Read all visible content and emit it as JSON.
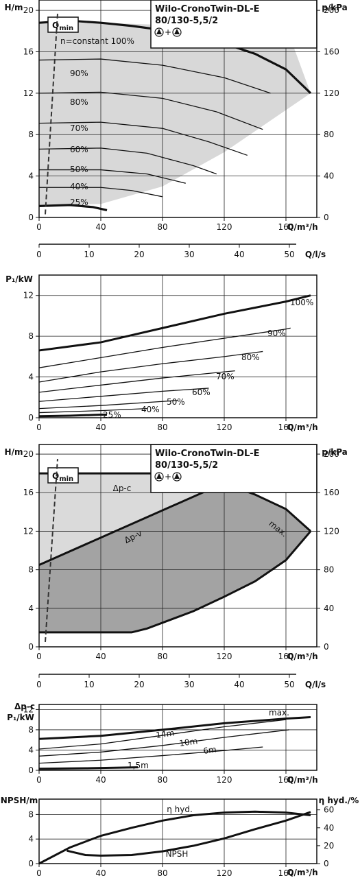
{
  "chart_data": [
    {
      "type": "line",
      "panel": "head-curves-speed",
      "title": "Wilo-CronoTwin-DL-E",
      "subtitle": "80/130-5,5/2",
      "pump_symbol": "▲+▲",
      "ylabel_left": "H/m",
      "ylabel_right": "p/kPa",
      "xlabel": "Q/m³/h",
      "xlim": [
        0,
        180
      ],
      "ylim": [
        0,
        21
      ],
      "x_ticks": [
        0,
        40,
        80,
        120,
        160
      ],
      "y_ticks": [
        0,
        4,
        8,
        12,
        16,
        20
      ],
      "y_right_ticks": [
        0,
        40,
        80,
        120,
        160,
        200
      ],
      "grid": true,
      "qmin_label": "Qmin",
      "qmin_line": {
        "x": [
          4,
          12
        ],
        "y": [
          0.3,
          19.7
        ]
      },
      "envelope": {
        "x": [
          0,
          40,
          80,
          120,
          160,
          176,
          120,
          80,
          40,
          0
        ],
        "y": [
          18.8,
          18.8,
          18.6,
          18.5,
          18.5,
          12,
          6.3,
          3,
          1.3,
          1.2
        ]
      },
      "series": [
        {
          "name": "n=constant 100%",
          "x": [
            0,
            20,
            40,
            60,
            80,
            100,
            120,
            140,
            160,
            176
          ],
          "y": [
            18.8,
            19.0,
            18.8,
            18.5,
            18.1,
            17.5,
            16.8,
            15.8,
            14.3,
            12.0
          ]
        },
        {
          "name": "90%",
          "x": [
            0,
            40,
            80,
            120,
            150
          ],
          "y": [
            15.2,
            15.3,
            14.7,
            13.5,
            12.0
          ]
        },
        {
          "name": "80%",
          "x": [
            0,
            40,
            80,
            115,
            145
          ],
          "y": [
            12.0,
            12.1,
            11.5,
            10.2,
            8.5
          ]
        },
        {
          "name": "70%",
          "x": [
            0,
            40,
            80,
            110,
            135
          ],
          "y": [
            9.1,
            9.2,
            8.6,
            7.3,
            6.0
          ]
        },
        {
          "name": "60%",
          "x": [
            0,
            40,
            70,
            100,
            115
          ],
          "y": [
            6.6,
            6.7,
            6.2,
            5.0,
            4.2
          ]
        },
        {
          "name": "50%",
          "x": [
            0,
            40,
            70,
            95
          ],
          "y": [
            4.6,
            4.6,
            4.2,
            3.3
          ]
        },
        {
          "name": "40%",
          "x": [
            0,
            40,
            60,
            80
          ],
          "y": [
            2.9,
            2.9,
            2.6,
            2.0
          ]
        },
        {
          "name": "25%",
          "x": [
            0,
            20,
            35,
            44
          ],
          "y": [
            1.1,
            1.2,
            1.0,
            0.7
          ]
        }
      ]
    },
    {
      "type": "axis",
      "panel": "flow-ls-axis",
      "xlabel": "Q/l/s",
      "xlim": [
        0,
        50
      ],
      "x_ticks": [
        0,
        10,
        20,
        30,
        40,
        50
      ]
    },
    {
      "type": "line",
      "panel": "power-curves-speed",
      "ylabel": "P₁/kW",
      "xlabel": "Q/m³/h",
      "xlim": [
        0,
        180
      ],
      "ylim": [
        0,
        14
      ],
      "x_ticks": [
        0,
        40,
        80,
        120,
        160
      ],
      "y_ticks": [
        0,
        4,
        8,
        12
      ],
      "grid": true,
      "series": [
        {
          "name": "100%",
          "x": [
            0,
            40,
            80,
            120,
            160,
            176
          ],
          "y": [
            6.6,
            7.4,
            8.8,
            10.2,
            11.4,
            12.0
          ]
        },
        {
          "name": "90%",
          "x": [
            0,
            40,
            80,
            120,
            160,
            163
          ],
          "y": [
            4.9,
            5.9,
            6.9,
            7.8,
            8.7,
            8.8
          ]
        },
        {
          "name": "80%",
          "x": [
            0,
            40,
            80,
            120,
            145
          ],
          "y": [
            3.5,
            4.5,
            5.3,
            6.0,
            6.5
          ]
        },
        {
          "name": "70%",
          "x": [
            0,
            40,
            80,
            120,
            127
          ],
          "y": [
            2.5,
            3.2,
            3.9,
            4.5,
            4.6
          ]
        },
        {
          "name": "60%",
          "x": [
            0,
            40,
            80,
            110
          ],
          "y": [
            1.6,
            2.1,
            2.6,
            2.9
          ]
        },
        {
          "name": "50%",
          "x": [
            0,
            40,
            80,
            90
          ],
          "y": [
            0.9,
            1.2,
            1.6,
            1.7
          ]
        },
        {
          "name": "40%",
          "x": [
            0,
            40,
            70
          ],
          "y": [
            0.5,
            0.7,
            0.9
          ]
        },
        {
          "name": "25%",
          "x": [
            0,
            20,
            40,
            44
          ],
          "y": [
            0.15,
            0.2,
            0.3,
            0.3
          ]
        }
      ]
    },
    {
      "type": "line",
      "panel": "head-curves-control",
      "title": "Wilo-CronoTwin-DL-E",
      "subtitle": "80/130-5,5/2",
      "pump_symbol": "▲+▲",
      "ylabel_left": "H/m",
      "ylabel_right": "p/kPa",
      "xlabel": "Q/m³/h",
      "xlim": [
        0,
        180
      ],
      "ylim": [
        0,
        21
      ],
      "x_ticks": [
        0,
        40,
        80,
        120,
        160
      ],
      "y_ticks": [
        0,
        4,
        8,
        12,
        16,
        20
      ],
      "y_right_ticks": [
        0,
        40,
        80,
        120,
        160,
        200
      ],
      "grid": true,
      "qmin_label": "Qmin",
      "qmin_line": {
        "x": [
          4,
          12
        ],
        "y": [
          0.5,
          19.5
        ]
      },
      "dpc_region": {
        "x": [
          0,
          95,
          120,
          0
        ],
        "y": [
          18,
          18,
          17,
          8.5
        ]
      },
      "control_region": {
        "x": [
          0,
          120,
          140,
          160,
          176,
          160,
          140,
          120,
          100,
          70,
          60,
          0
        ],
        "y": [
          8.5,
          17,
          15.8,
          14.3,
          12,
          9,
          6.8,
          5.2,
          3.7,
          1.9,
          1.5,
          1.5
        ]
      },
      "series": [
        {
          "name": "Δp-c",
          "x": [
            0,
            95,
            120
          ],
          "y": [
            18,
            18,
            17
          ]
        },
        {
          "name": "Δp-v",
          "x": [
            0,
            120
          ],
          "y": [
            8.5,
            17
          ]
        },
        {
          "name": "max.",
          "x": [
            120,
            140,
            160,
            176
          ],
          "y": [
            17,
            15.8,
            14.3,
            12
          ]
        },
        {
          "name": "min",
          "x": [
            0,
            60,
            70,
            100,
            120,
            140,
            160,
            176
          ],
          "y": [
            1.5,
            1.5,
            1.9,
            3.7,
            5.2,
            6.8,
            9.0,
            12
          ]
        }
      ]
    },
    {
      "type": "axis",
      "panel": "flow-ls-axis-2",
      "xlabel": "Q/l/s",
      "xlim": [
        0,
        50
      ],
      "x_ticks": [
        0,
        10,
        20,
        30,
        40,
        50
      ]
    },
    {
      "type": "line",
      "panel": "power-curves-dpc",
      "ylabel_top": "Δp-c",
      "ylabel": "P₁/kW",
      "xlabel": "Q/m³/h",
      "xlim": [
        0,
        180
      ],
      "ylim": [
        0,
        13
      ],
      "x_ticks": [
        0,
        40,
        80,
        120,
        160
      ],
      "y_ticks": [
        0,
        4,
        8,
        12
      ],
      "grid": true,
      "series": [
        {
          "name": "max.",
          "x": [
            0,
            40,
            80,
            120,
            160,
            176
          ],
          "y": [
            6.2,
            6.8,
            8.0,
            9.3,
            10.2,
            10.5
          ]
        },
        {
          "name": "14m",
          "x": [
            0,
            40,
            80,
            120,
            160
          ],
          "y": [
            4.2,
            5.2,
            6.9,
            8.6,
            10.0
          ]
        },
        {
          "name": "10m",
          "x": [
            0,
            40,
            80,
            120,
            162
          ],
          "y": [
            2.8,
            3.6,
            4.9,
            6.5,
            8.0
          ]
        },
        {
          "name": "6m",
          "x": [
            0,
            40,
            80,
            120,
            145
          ],
          "y": [
            1.4,
            2.0,
            2.9,
            3.9,
            4.6
          ]
        },
        {
          "name": "1,5m",
          "x": [
            0,
            30,
            64
          ],
          "y": [
            0.3,
            0.4,
            0.6
          ]
        }
      ]
    },
    {
      "type": "line",
      "panel": "npsh-efficiency",
      "ylabel_left": "NPSH/m",
      "ylabel_right": "η hyd./%",
      "xlabel": "Q/m³/h",
      "xlim": [
        0,
        180
      ],
      "ylim": [
        0,
        10.5
      ],
      "x_ticks": [
        0,
        40,
        80,
        120,
        160
      ],
      "y_ticks": [
        0,
        4,
        8
      ],
      "y_right_ticks": [
        0,
        20,
        40,
        60
      ],
      "grid": true,
      "series": [
        {
          "name": "η hyd.",
          "x": [
            0,
            20,
            40,
            60,
            80,
            100,
            120,
            140,
            160,
            176
          ],
          "y_percent": [
            0,
            18,
            31,
            40,
            48,
            54,
            57,
            58,
            57,
            54
          ]
        },
        {
          "name": "NPSH",
          "x": [
            18,
            30,
            40,
            60,
            80,
            100,
            120,
            140,
            160,
            176
          ],
          "y": [
            2.1,
            1.4,
            1.3,
            1.4,
            2.0,
            2.9,
            4.1,
            5.6,
            7.0,
            8.4
          ]
        }
      ]
    }
  ]
}
